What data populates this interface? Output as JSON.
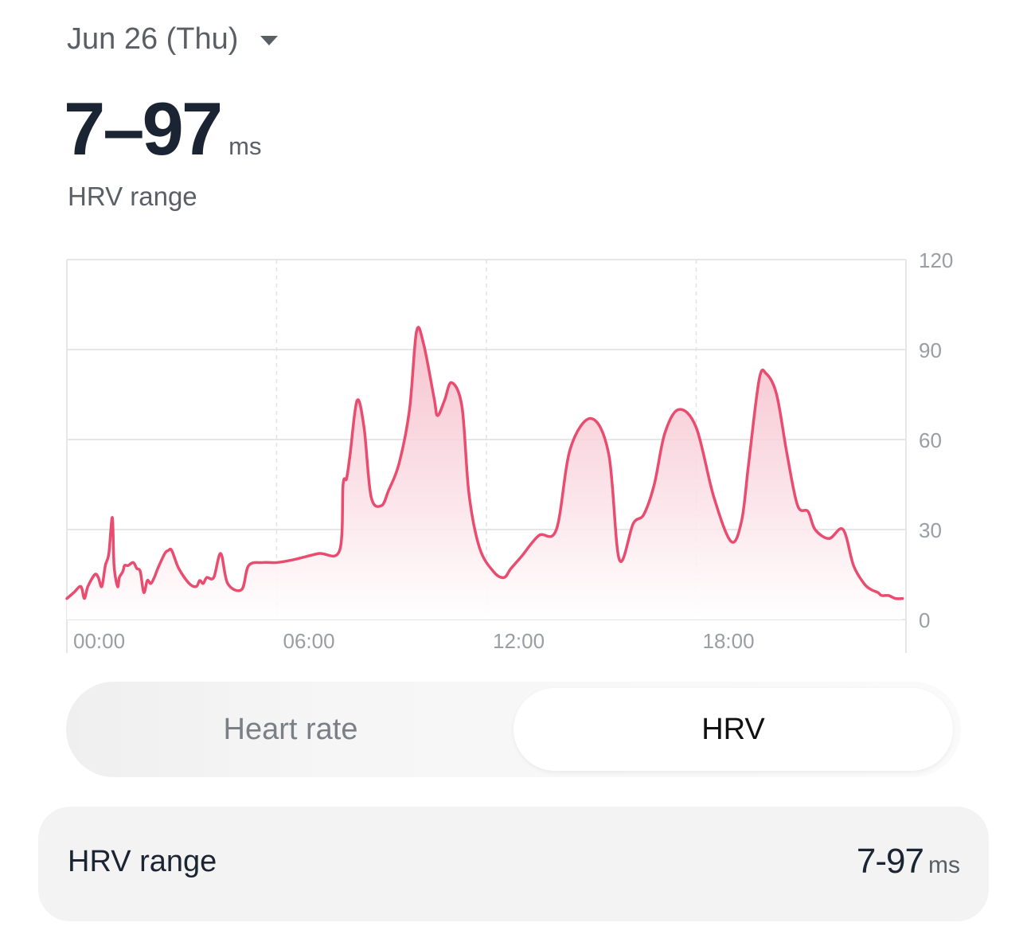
{
  "header": {
    "date_label": "Jun 26 (Thu)",
    "dropdown_icon": "caret-down-icon",
    "range_value": "7–97",
    "range_unit": "ms",
    "range_caption": "HRV range"
  },
  "colors": {
    "line": "#e94c6f",
    "fill_top": "#f5b8c6",
    "fill_bottom": "#ffffff",
    "grid": "#e6e6e6",
    "axis_text": "#9a9ea3"
  },
  "chart_data": {
    "type": "area",
    "ylim": [
      0,
      120
    ],
    "y_ticks": [
      "0",
      "30",
      "60",
      "90",
      "120"
    ],
    "x_ticks": [
      "00:00",
      "06:00",
      "12:00",
      "18:00"
    ],
    "x_range_hours": [
      0,
      24
    ],
    "grid": true,
    "series": [
      {
        "x": [
          0.0,
          0.2,
          0.4,
          0.5,
          0.6,
          0.8,
          0.9,
          1.0,
          1.1,
          1.2,
          1.3,
          1.35,
          1.45,
          1.5,
          1.6,
          1.65,
          1.75,
          1.9,
          2.0,
          2.1,
          2.2,
          2.3,
          2.4,
          2.5,
          2.6,
          2.8,
          2.9,
          3.0,
          3.2,
          3.5,
          3.7,
          3.8,
          3.9,
          4.0,
          4.2,
          4.4,
          4.6,
          5.0,
          5.2,
          5.6,
          6.0,
          6.5,
          7.2,
          7.8,
          7.9,
          8.0,
          8.1,
          8.3,
          8.5,
          8.7,
          9.0,
          9.2,
          9.5,
          9.8,
          10.0,
          10.2,
          10.5,
          10.6,
          10.8,
          11.0,
          11.3,
          11.5,
          11.8,
          12.2,
          12.5,
          12.7,
          13.0,
          13.5,
          14.0,
          14.4,
          15.0,
          15.5,
          15.8,
          16.2,
          16.5,
          16.8,
          17.1,
          17.5,
          18.0,
          18.5,
          19.0,
          19.3,
          19.5,
          19.8,
          20.0,
          20.3,
          20.6,
          20.9,
          21.2,
          21.4,
          21.8,
          22.2,
          22.5,
          22.8,
          23.0,
          23.2,
          23.3,
          23.5,
          23.7,
          23.9
        ],
        "values": [
          7,
          9,
          11,
          7,
          11,
          15,
          14,
          11,
          18,
          22,
          34,
          18,
          11,
          14,
          16,
          18,
          18,
          19,
          17,
          16,
          9,
          13,
          12,
          14,
          17,
          22,
          23,
          23,
          17,
          12,
          11,
          13,
          12,
          14,
          14,
          22,
          12,
          10,
          18,
          19,
          19,
          20,
          22,
          23,
          45,
          47,
          55,
          73,
          64,
          41,
          38,
          43,
          52,
          70,
          96,
          92,
          74,
          68,
          73,
          79,
          71,
          42,
          24,
          16,
          14,
          17,
          21,
          28,
          30,
          57,
          67,
          55,
          20,
          32,
          35,
          45,
          62,
          70,
          64,
          41,
          26,
          33,
          52,
          80,
          82,
          75,
          55,
          38,
          36,
          30,
          27,
          30,
          18,
          12,
          10,
          9,
          8,
          8,
          7,
          7
        ]
      }
    ]
  },
  "toggle": {
    "left_label": "Heart rate",
    "right_label": "HRV",
    "selected": "HRV"
  },
  "summary": {
    "label": "HRV range",
    "value": "7-97",
    "unit": "ms"
  }
}
